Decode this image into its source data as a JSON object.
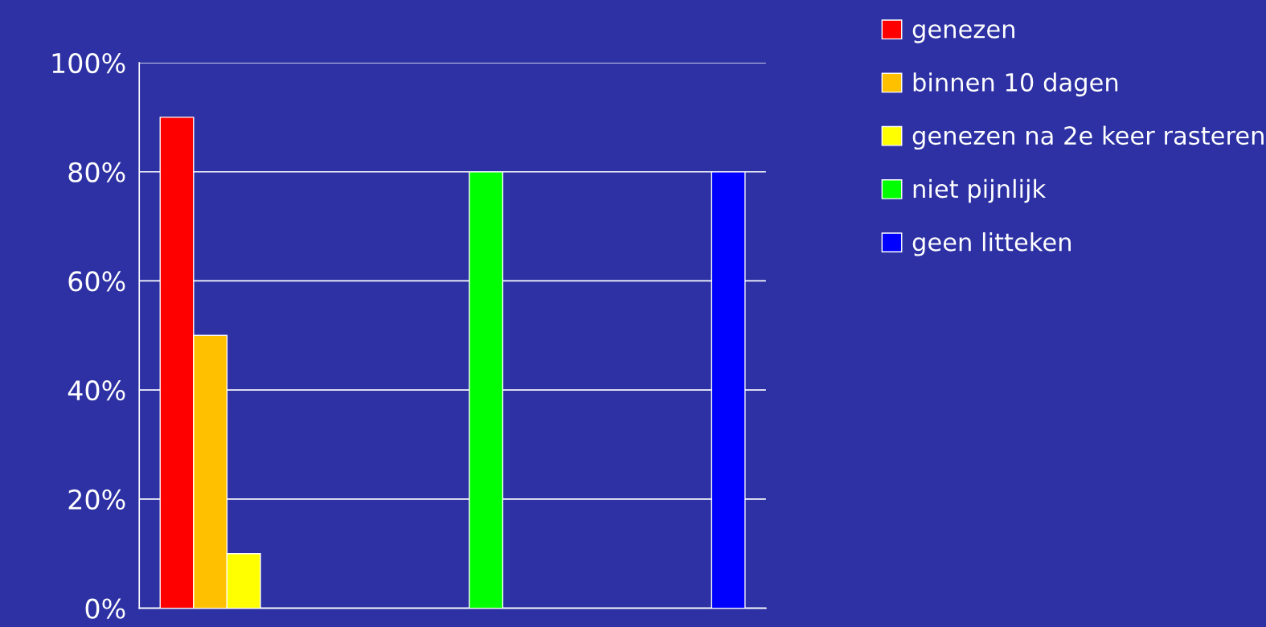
{
  "chart_data": {
    "type": "bar",
    "categories": [
      null,
      null,
      null
    ],
    "series": [
      {
        "name": "genezen",
        "color": "#ff0000",
        "values": [
          90,
          null,
          null
        ]
      },
      {
        "name": "binnen 10 dagen",
        "color": "#ffc000",
        "values": [
          50,
          null,
          null
        ]
      },
      {
        "name": "genezen na 2e keer rasteren",
        "color": "#ffff00",
        "values": [
          10,
          null,
          null
        ]
      },
      {
        "name": "niet pijnlijk",
        "color": "#00ff00",
        "values": [
          null,
          80,
          null
        ]
      },
      {
        "name": "geen litteken",
        "color": "#0000ff",
        "values": [
          null,
          null,
          80
        ]
      }
    ],
    "ylim": [
      0,
      100
    ],
    "yticks": [
      {
        "value": 0,
        "label": "0%"
      },
      {
        "value": 20,
        "label": "20%"
      },
      {
        "value": 40,
        "label": "40%"
      },
      {
        "value": 60,
        "label": "60%"
      },
      {
        "value": 80,
        "label": "80%"
      },
      {
        "value": 100,
        "label": "100%"
      }
    ],
    "grid": "y",
    "legend": "right"
  }
}
